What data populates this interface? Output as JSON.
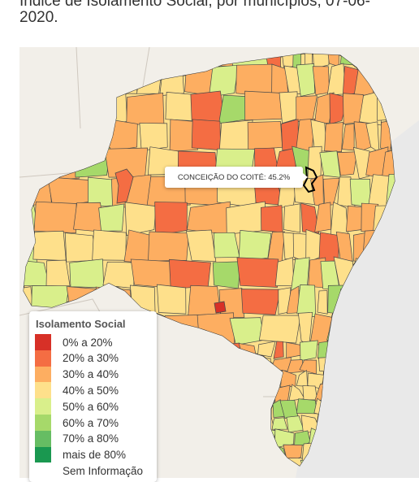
{
  "title": "Índice de Isolamento Social, por municípios, 07-06-2020.",
  "tooltip": "CONCEIÇÃO DO COITÉ: 45.2%",
  "legend": {
    "title": "Isolamento Social",
    "items": [
      {
        "label": "0% a 20%",
        "color": "#d73027"
      },
      {
        "label": "20% a 30%",
        "color": "#f46d43"
      },
      {
        "label": "30% a 40%",
        "color": "#fdae61"
      },
      {
        "label": "40% a 50%",
        "color": "#fee08b"
      },
      {
        "label": "50% a 60%",
        "color": "#d9ef8b"
      },
      {
        "label": "60% a 70%",
        "color": "#a6d96a"
      },
      {
        "label": "70% a 80%",
        "color": "#66bd63"
      },
      {
        "label": "mais de 80%",
        "color": "#1a9850"
      },
      {
        "label": "Sem Informação",
        "color": "#ffffff"
      }
    ]
  },
  "colors": {
    "ocean": "#e9e9e9",
    "border": "#4a4a4a"
  }
}
